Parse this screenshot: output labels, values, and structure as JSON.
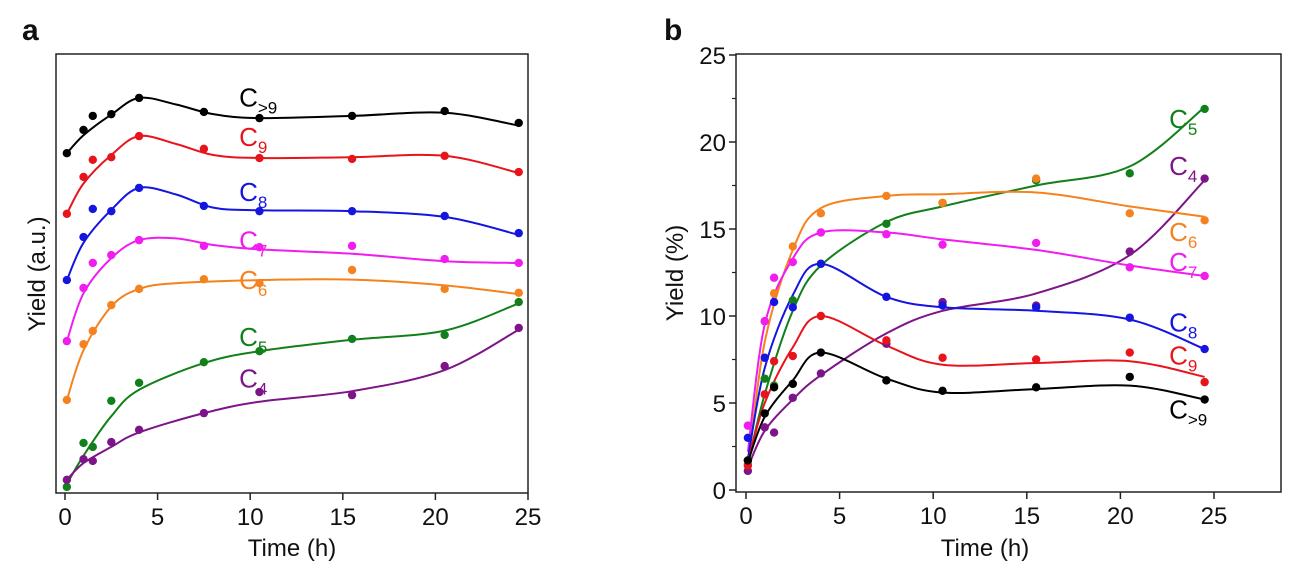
{
  "chart_data": [
    {
      "type": "line",
      "panel_letter": "a",
      "title": "",
      "xlabel": "Time (h)",
      "ylabel": "Yield (a.u.)",
      "xlim": [
        0,
        25
      ],
      "ylim": [
        0,
        100
      ],
      "y_ticks_shown": false,
      "grid": false,
      "legend": "inline labels near curves",
      "x_ticks": [
        0,
        5,
        10,
        15,
        20,
        25
      ],
      "x_tick_labels": [
        "0",
        "5",
        "10",
        "15",
        "20",
        "25"
      ],
      "x": [
        0.1,
        1,
        1.5,
        2.5,
        4,
        7.5,
        10.5,
        15.5,
        20.5,
        24.5
      ],
      "series": [
        {
          "name": "C>9",
          "label_main": "C",
          "label_sub": ">9",
          "color": "#000000",
          "label_at": [
            9.4,
            88
          ],
          "values": [
            77.4,
            82.7,
            85.9,
            86.3,
            90.0,
            86.8,
            85.4,
            85.9,
            87.0,
            84.3
          ],
          "fit": [
            [
              0.1,
              77.4
            ],
            [
              1,
              81.5
            ],
            [
              2.5,
              86.2
            ],
            [
              4,
              90.0
            ],
            [
              6,
              88.5
            ],
            [
              8,
              86.3
            ],
            [
              10.5,
              85.4
            ],
            [
              15.5,
              85.9
            ],
            [
              20.5,
              86.6
            ],
            [
              24.5,
              83.7
            ]
          ]
        },
        {
          "name": "C9",
          "label_main": "C",
          "label_sub": "9",
          "color": "#e8141c",
          "label_at": [
            9.4,
            79
          ],
          "values": [
            63.6,
            72.0,
            75.9,
            76.5,
            81.3,
            78.4,
            76.3,
            76.1,
            76.8,
            73.1
          ],
          "fit": [
            [
              0.1,
              63.6
            ],
            [
              1,
              70.5
            ],
            [
              2.5,
              77.0
            ],
            [
              4,
              81.3
            ],
            [
              6,
              79.5
            ],
            [
              8,
              77.0
            ],
            [
              10.5,
              76.3
            ],
            [
              15.5,
              76.5
            ],
            [
              20.5,
              76.8
            ],
            [
              24.5,
              72.9
            ]
          ]
        },
        {
          "name": "C8",
          "label_main": "C",
          "label_sub": "8",
          "color": "#1515e0",
          "label_at": [
            9.4,
            66.5
          ],
          "values": [
            48.5,
            58.3,
            64.7,
            64.2,
            69.5,
            65.4,
            64.2,
            64.2,
            63.1,
            59.2
          ],
          "fit": [
            [
              0.1,
              48.5
            ],
            [
              1,
              57.0
            ],
            [
              2.5,
              64.5
            ],
            [
              4,
              69.5
            ],
            [
              6,
              68.0
            ],
            [
              8,
              65.0
            ],
            [
              10.5,
              64.4
            ],
            [
              15.5,
              64.2
            ],
            [
              20.5,
              62.9
            ],
            [
              24.5,
              58.8
            ]
          ]
        },
        {
          "name": "C7",
          "label_main": "C",
          "label_sub": "7",
          "color": "#f01cf0",
          "label_at": [
            9.4,
            55.5
          ],
          "values": [
            34.6,
            46.7,
            52.4,
            54.2,
            57.6,
            56.3,
            56.0,
            56.3,
            53.3,
            52.4
          ],
          "fit": [
            [
              0.1,
              34.6
            ],
            [
              1,
              45.5
            ],
            [
              2.5,
              53.5
            ],
            [
              4,
              57.6
            ],
            [
              6,
              58.0
            ],
            [
              8,
              56.5
            ],
            [
              10.5,
              55.5
            ],
            [
              15.5,
              54.5
            ],
            [
              20.5,
              52.8
            ],
            [
              24.5,
              52.4
            ]
          ]
        },
        {
          "name": "C6",
          "label_main": "C",
          "label_sub": "6",
          "color": "#f5821f",
          "label_at": [
            9.4,
            46.5
          ],
          "values": [
            21.2,
            33.9,
            36.9,
            42.8,
            46.5,
            48.7,
            47.8,
            50.8,
            46.5,
            45.6
          ],
          "fit": [
            [
              0.1,
              21.2
            ],
            [
              1,
              32.5
            ],
            [
              2.5,
              42.5
            ],
            [
              4,
              46.5
            ],
            [
              6,
              47.8
            ],
            [
              10.5,
              48.5
            ],
            [
              15.5,
              48.6
            ],
            [
              20.5,
              47.3
            ],
            [
              24.5,
              45.3
            ]
          ]
        },
        {
          "name": "C5",
          "label_main": "C",
          "label_sub": "5",
          "color": "#12801a",
          "label_at": [
            9.4,
            33.5
          ],
          "values": [
            1.4,
            11.4,
            10.5,
            21.0,
            25.1,
            29.8,
            32.3,
            35.1,
            36.0,
            43.5
          ],
          "fit": [
            [
              0.1,
              2.0
            ],
            [
              1,
              8.5
            ],
            [
              2.5,
              17.5
            ],
            [
              4,
              23.5
            ],
            [
              7.5,
              29.6
            ],
            [
              10.5,
              32.3
            ],
            [
              15.5,
              34.9
            ],
            [
              20.5,
              37.0
            ],
            [
              24.5,
              43.2
            ]
          ]
        },
        {
          "name": "C4",
          "label_main": "C",
          "label_sub": "4",
          "color": "#7d1487",
          "label_at": [
            9.4,
            24.0
          ],
          "values": [
            3.0,
            7.7,
            7.3,
            11.6,
            14.4,
            18.2,
            23.0,
            22.3,
            28.9,
            37.6
          ],
          "fit": [
            [
              0.1,
              3.0
            ],
            [
              1,
              6.8
            ],
            [
              2.5,
              10.5
            ],
            [
              4,
              13.8
            ],
            [
              7.5,
              18.2
            ],
            [
              10.5,
              20.8
            ],
            [
              15.5,
              23.2
            ],
            [
              20.5,
              28.0
            ],
            [
              24.5,
              37.2
            ]
          ]
        }
      ]
    },
    {
      "type": "line",
      "panel_letter": "b",
      "title": "",
      "xlabel": "Time  (h)",
      "ylabel": "Yield (%)",
      "xlim": [
        0,
        25
      ],
      "ylim": [
        0,
        25
      ],
      "grid": false,
      "legend": "inline labels at right end of curves",
      "x_ticks": [
        0,
        5,
        10,
        15,
        20,
        25
      ],
      "x_tick_labels": [
        "0",
        "5",
        "10",
        "15",
        "20",
        "25"
      ],
      "y_ticks": [
        0,
        5,
        10,
        15,
        20,
        25
      ],
      "y_tick_labels": [
        "0",
        "5",
        "10",
        "15",
        "20",
        "25"
      ],
      "y_minor_ticks": [
        2.5,
        7.5,
        12.5,
        17.5,
        22.5
      ],
      "x": [
        0.1,
        1,
        1.5,
        2.5,
        4,
        7.5,
        10.5,
        15.5,
        20.5,
        24.5
      ],
      "series": [
        {
          "name": "C5",
          "label_main": "C",
          "label_sub": "5",
          "color": "#12801a",
          "label_at": [
            22.6,
            20.8
          ],
          "values": [
            1.7,
            6.4,
            6.0,
            10.9,
            13.0,
            15.3,
            16.5,
            17.8,
            18.2,
            21.9
          ],
          "fit": [
            [
              0.1,
              1.5
            ],
            [
              1,
              5.5
            ],
            [
              2.5,
              10.3
            ],
            [
              4,
              12.9
            ],
            [
              7.5,
              15.4
            ],
            [
              10.5,
              16.3
            ],
            [
              15.5,
              17.5
            ],
            [
              20.5,
              18.6
            ],
            [
              24.5,
              22.0
            ]
          ]
        },
        {
          "name": "C4",
          "label_main": "C",
          "label_sub": "4",
          "color": "#7d1487",
          "label_at": [
            22.6,
            18.1
          ],
          "values": [
            1.1,
            3.6,
            3.3,
            5.3,
            6.7,
            8.4,
            10.8,
            10.6,
            13.7,
            17.9
          ],
          "fit": [
            [
              0.1,
              1.3
            ],
            [
              1,
              3.4
            ],
            [
              2.5,
              5.2
            ],
            [
              4,
              6.6
            ],
            [
              7.5,
              9.0
            ],
            [
              10.5,
              10.3
            ],
            [
              15.5,
              11.3
            ],
            [
              20.5,
              13.5
            ],
            [
              24.5,
              17.8
            ]
          ]
        },
        {
          "name": "C6",
          "label_main": "C",
          "label_sub": "6",
          "color": "#f5821f",
          "label_at": [
            22.6,
            14.3
          ],
          "values": [
            1.5,
            9.7,
            11.3,
            14.0,
            15.9,
            16.9,
            16.5,
            17.9,
            15.9,
            15.5
          ],
          "fit": [
            [
              0.1,
              1.3
            ],
            [
              1,
              8.5
            ],
            [
              2.5,
              13.8
            ],
            [
              4,
              16.2
            ],
            [
              7.5,
              16.9
            ],
            [
              10.5,
              17.0
            ],
            [
              15.5,
              17.1
            ],
            [
              20.5,
              16.3
            ],
            [
              24.5,
              15.7
            ]
          ]
        },
        {
          "name": "C7",
          "label_main": "C",
          "label_sub": "7",
          "color": "#f01cf0",
          "label_at": [
            22.6,
            12.6
          ],
          "values": [
            3.7,
            9.7,
            12.2,
            13.1,
            14.8,
            14.7,
            14.1,
            14.2,
            12.8,
            12.3
          ],
          "fit": [
            [
              0.1,
              2.2
            ],
            [
              1,
              9.5
            ],
            [
              2.5,
              13.3
            ],
            [
              4,
              14.8
            ],
            [
              7.5,
              14.8
            ],
            [
              10.5,
              14.4
            ],
            [
              15.5,
              13.8
            ],
            [
              20.5,
              12.9
            ],
            [
              24.5,
              12.3
            ]
          ]
        },
        {
          "name": "C8",
          "label_main": "C",
          "label_sub": "8",
          "color": "#1515e0",
          "label_at": [
            22.6,
            9.1
          ],
          "values": [
            3.0,
            7.6,
            10.8,
            10.5,
            13.0,
            11.1,
            10.6,
            10.5,
            9.9,
            8.1
          ],
          "fit": [
            [
              0.1,
              1.8
            ],
            [
              1,
              7.0
            ],
            [
              2.5,
              11.2
            ],
            [
              4,
              13.0
            ],
            [
              7.5,
              11.1
            ],
            [
              10.5,
              10.5
            ],
            [
              15.5,
              10.3
            ],
            [
              20.5,
              9.8
            ],
            [
              24.5,
              8.1
            ]
          ]
        },
        {
          "name": "C9",
          "label_main": "C",
          "label_sub": "9",
          "color": "#e8141c",
          "label_at": [
            22.6,
            7.2
          ],
          "values": [
            1.4,
            5.5,
            7.4,
            7.7,
            10.0,
            8.6,
            7.6,
            7.5,
            7.9,
            6.2
          ],
          "fit": [
            [
              0.1,
              1.6
            ],
            [
              1,
              5.0
            ],
            [
              2.5,
              8.2
            ],
            [
              4,
              10.0
            ],
            [
              7.5,
              8.3
            ],
            [
              10.5,
              7.2
            ],
            [
              15.5,
              7.3
            ],
            [
              20.5,
              7.4
            ],
            [
              24.5,
              6.5
            ]
          ]
        },
        {
          "name": "C>9",
          "label_main": "C",
          "label_sub": ">9",
          "color": "#000000",
          "label_at": [
            22.6,
            4.1
          ],
          "values": [
            1.7,
            4.4,
            5.9,
            6.1,
            7.9,
            6.3,
            5.7,
            5.9,
            6.5,
            5.2
          ],
          "fit": [
            [
              0.1,
              1.6
            ],
            [
              1,
              4.2
            ],
            [
              2.5,
              6.3
            ],
            [
              4,
              7.9
            ],
            [
              7.5,
              6.4
            ],
            [
              10.5,
              5.6
            ],
            [
              15.5,
              5.8
            ],
            [
              20.5,
              6.0
            ],
            [
              24.5,
              5.2
            ]
          ]
        }
      ]
    }
  ]
}
